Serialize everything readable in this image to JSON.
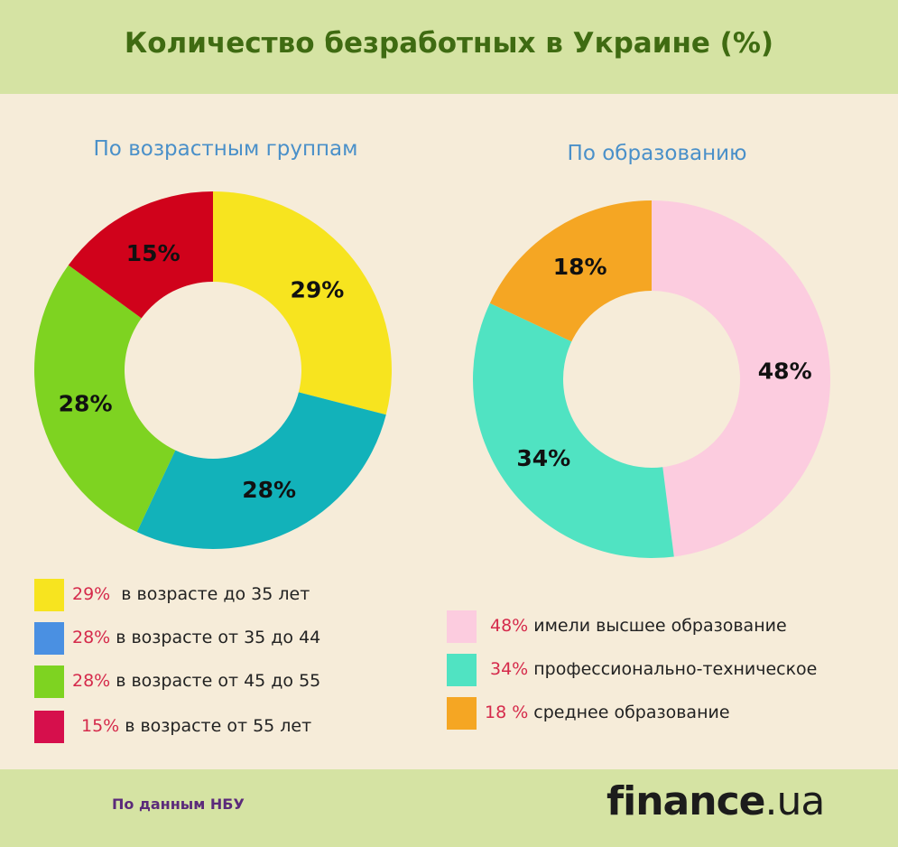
{
  "title": "Количество безработных в Украине (%)",
  "colors": {
    "yellow": "#f7e41f",
    "teal": "#12b2ba",
    "green": "#7ed321",
    "red": "#d0021b",
    "blue": "#4a90e2",
    "legend_red": "#d60f4c",
    "pink": "#fcccdf",
    "mint": "#50e3c2",
    "orange": "#f5a623"
  },
  "chart_data": [
    {
      "type": "pie",
      "title": "По возрастным группам",
      "slices": [
        {
          "value": 29,
          "label": "29%",
          "color": "#f7e41f"
        },
        {
          "value": 28,
          "label": "28%",
          "color": "#12b2ba"
        },
        {
          "value": 28,
          "label": "28%",
          "color": "#7ed321"
        },
        {
          "value": 15,
          "label": "15%",
          "color": "#d0021b"
        }
      ],
      "legend": [
        {
          "pct": "29%",
          "text": " в возрасте до 35 лет",
          "color": "#f7e41f"
        },
        {
          "pct": "28%",
          "text": "в возрасте от 35 до 44",
          "color": "#4a90e2"
        },
        {
          "pct": "28%",
          "text": "в возрасте от 45 до 55",
          "color": "#7ed321"
        },
        {
          "pct": "15%",
          "text": "в возрасте от 55 лет",
          "color": "#d60f4c"
        }
      ]
    },
    {
      "type": "pie",
      "title": "По образованию",
      "slices": [
        {
          "value": 48,
          "label": "48%",
          "color": "#fcccdf"
        },
        {
          "value": 34,
          "label": "34%",
          "color": "#50e3c2"
        },
        {
          "value": 18,
          "label": "18%",
          "color": "#f5a623"
        }
      ],
      "legend": [
        {
          "pct": "48%",
          "text": "имели высшее образование",
          "color": "#fcccdf"
        },
        {
          "pct": "34%",
          "text": "профессионально-техническое",
          "color": "#50e3c2"
        },
        {
          "pct": "18 %",
          "text": "среднее образование",
          "color": "#f5a623"
        }
      ]
    }
  ],
  "footer": {
    "source": "По данным НБУ",
    "logo_main": "finance",
    "logo_suffix": ".ua"
  }
}
